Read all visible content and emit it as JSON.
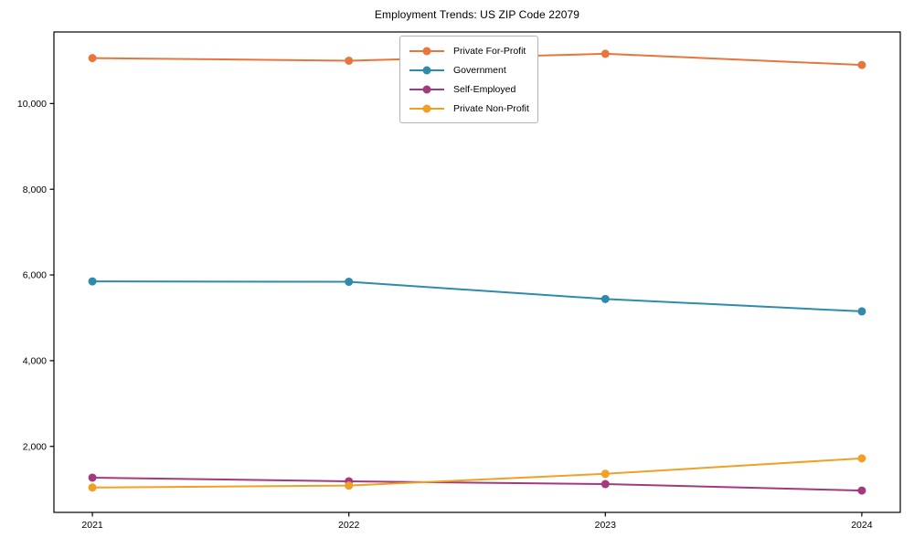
{
  "chart_data": {
    "type": "line",
    "title": "Employment Trends: US ZIP Code 22079",
    "xlabel": "",
    "ylabel": "",
    "x": [
      2021,
      2022,
      2023,
      2024
    ],
    "x_tick_labels": [
      "2021",
      "2022",
      "2023",
      "2024"
    ],
    "y_ticks": [
      2000,
      4000,
      6000,
      8000,
      10000
    ],
    "y_tick_labels": [
      "2,000",
      "4,000",
      "6,000",
      "8,000",
      "10,000"
    ],
    "xlim": [
      2020.85,
      2024.15
    ],
    "ylim": [
      460,
      11670
    ],
    "grid": false,
    "frame": "full-box",
    "legend_position": "upper center",
    "marker": "circle",
    "series": [
      {
        "name": "Private For-Profit",
        "color": "#e8763c",
        "values": [
          11060,
          11000,
          11160,
          10900
        ]
      },
      {
        "name": "Government",
        "color": "#2e8bad",
        "values": [
          5850,
          5840,
          5440,
          5150
        ]
      },
      {
        "name": "Self-Employed",
        "color": "#a23a7d",
        "values": [
          1270,
          1185,
          1120,
          970
        ]
      },
      {
        "name": "Private Non-Profit",
        "color": "#f0a125",
        "values": [
          1040,
          1085,
          1360,
          1720
        ]
      }
    ]
  }
}
